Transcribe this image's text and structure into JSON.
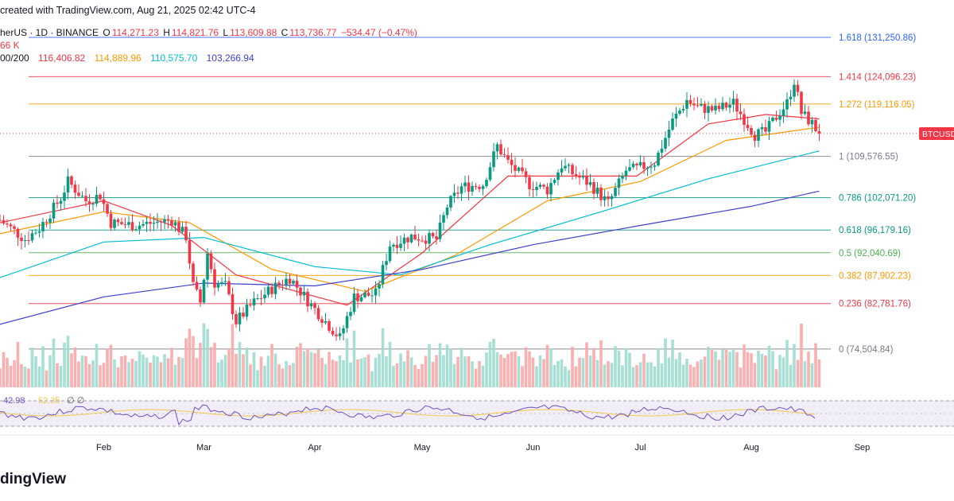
{
  "credit": "created with TradingView.com, Aug 21, 2025 02:42 UTC-4",
  "symbol_info": "herUS · 1D · BINANCE",
  "ohlc": {
    "o_label": "O",
    "o": "114,271.23",
    "h_label": "H",
    "h": "114,821.76",
    "l_label": "L",
    "l": "113,609.88",
    "c_label": "C",
    "c": "113,736.77",
    "change": "−534.47 (−0.47%)"
  },
  "volume_text": "66 K",
  "ma_label": "00/200",
  "ma_values": [
    "116,406.82",
    "114,889.96",
    "110,575.70",
    "103,266.94"
  ],
  "ma_colors": [
    "#f23645",
    "#ff9800",
    "#00bcd4",
    "#3f3fcf"
  ],
  "rsi_values": [
    "42.98",
    "52.35"
  ],
  "rsi_extra": "∅  ∅",
  "price_tag": "BTCUSDT",
  "logo_text": "dingView",
  "chart_data": {
    "type": "candlestick",
    "y_range": [
      70000,
      134000
    ],
    "x_axis": {
      "start_date": "2025-01-03",
      "end_date": "2025-09-10",
      "ticks": [
        {
          "date": "2025-02-01",
          "label": "Feb"
        },
        {
          "date": "2025-03-01",
          "label": "Mar"
        },
        {
          "date": "2025-04-01",
          "label": "Apr"
        },
        {
          "date": "2025-05-01",
          "label": "May"
        },
        {
          "date": "2025-06-01",
          "label": "Jun"
        },
        {
          "date": "2025-07-01",
          "label": "Jul"
        },
        {
          "date": "2025-08-01",
          "label": "Aug"
        },
        {
          "date": "2025-09-01",
          "label": "Sep"
        }
      ]
    },
    "fib_levels": [
      {
        "ratio": "1.618",
        "price": 131250.86,
        "label": "1.618 (131,250.86)",
        "color": "#2962ff"
      },
      {
        "ratio": "1.414",
        "price": 124096.23,
        "label": "1.414 (124,096.23)",
        "color": "#f23645"
      },
      {
        "ratio": "1.272",
        "price": 119116.05,
        "label": "1.272 (119,116.05)",
        "color": "#ff9800"
      },
      {
        "ratio": "1",
        "price": 109576.55,
        "label": "1 (109,576.55)",
        "color": "#787b86"
      },
      {
        "ratio": "0.786",
        "price": 102071.2,
        "label": "0.786 (102,071.20)",
        "color": "#089981"
      },
      {
        "ratio": "0.618",
        "price": 96179.16,
        "label": "0.618 (96,179.16)",
        "color": "#089981"
      },
      {
        "ratio": "0.5",
        "price": 92040.69,
        "label": "0.5 (92,040.69)",
        "color": "#4caf50"
      },
      {
        "ratio": "0.382",
        "price": 87902.23,
        "label": "0.382 (87,902.23)",
        "color": "#ff9800"
      },
      {
        "ratio": "0.236",
        "price": 82781.76,
        "label": "0.236 (82,781.76)",
        "color": "#f23645"
      },
      {
        "ratio": "0",
        "price": 74504.84,
        "label": "0 (74,504.84)",
        "color": "#787b86"
      }
    ],
    "close_anchors": [
      [
        "2025-01-03",
        98000
      ],
      [
        "2025-01-10",
        94500
      ],
      [
        "2025-01-14",
        96500
      ],
      [
        "2025-01-20",
        102000
      ],
      [
        "2025-01-22",
        105000
      ],
      [
        "2025-01-27",
        101500
      ],
      [
        "2025-01-31",
        102500
      ],
      [
        "2025-02-03",
        97500
      ],
      [
        "2025-02-10",
        97000
      ],
      [
        "2025-02-20",
        98000
      ],
      [
        "2025-02-24",
        95000
      ],
      [
        "2025-02-26",
        86000
      ],
      [
        "2025-02-28",
        83000
      ],
      [
        "2025-03-02",
        92000
      ],
      [
        "2025-03-04",
        86500
      ],
      [
        "2025-03-07",
        86000
      ],
      [
        "2025-03-10",
        79500
      ],
      [
        "2025-03-15",
        83000
      ],
      [
        "2025-03-20",
        85500
      ],
      [
        "2025-03-25",
        87500
      ],
      [
        "2025-03-31",
        82500
      ],
      [
        "2025-04-06",
        78000
      ],
      [
        "2025-04-08",
        76500
      ],
      [
        "2025-04-12",
        84000
      ],
      [
        "2025-04-18",
        84500
      ],
      [
        "2025-04-22",
        93500
      ],
      [
        "2025-04-28",
        95000
      ],
      [
        "2025-05-05",
        94500
      ],
      [
        "2025-05-08",
        100500
      ],
      [
        "2025-05-12",
        104000
      ],
      [
        "2025-05-18",
        104500
      ],
      [
        "2025-05-22",
        111500
      ],
      [
        "2025-05-25",
        108500
      ],
      [
        "2025-05-31",
        104500
      ],
      [
        "2025-06-05",
        103500
      ],
      [
        "2025-06-09",
        108000
      ],
      [
        "2025-06-12",
        106500
      ],
      [
        "2025-06-17",
        104500
      ],
      [
        "2025-06-22",
        101000
      ],
      [
        "2025-06-27",
        107000
      ],
      [
        "2025-06-30",
        107300
      ],
      [
        "2025-07-05",
        108500
      ],
      [
        "2025-07-10",
        116000
      ],
      [
        "2025-07-14",
        119800
      ],
      [
        "2025-07-17",
        118500
      ],
      [
        "2025-07-22",
        118000
      ],
      [
        "2025-07-27",
        119300
      ],
      [
        "2025-08-02",
        113500
      ],
      [
        "2025-08-05",
        114000
      ],
      [
        "2025-08-08",
        116800
      ],
      [
        "2025-08-11",
        119300
      ],
      [
        "2025-08-13",
        123400
      ],
      [
        "2025-08-15",
        117500
      ],
      [
        "2025-08-18",
        115500
      ],
      [
        "2025-08-20",
        113736.77
      ]
    ],
    "ma_lines": [
      {
        "name": "MA1",
        "color": "#f23645",
        "points": [
          [
            "2025-01-03",
            97500
          ],
          [
            "2025-02-01",
            101500
          ],
          [
            "2025-02-20",
            97000
          ],
          [
            "2025-03-10",
            88000
          ],
          [
            "2025-04-10",
            82500
          ],
          [
            "2025-05-01",
            92000
          ],
          [
            "2025-05-25",
            106000
          ],
          [
            "2025-06-30",
            106000
          ],
          [
            "2025-07-20",
            115500
          ],
          [
            "2025-08-05",
            117200
          ],
          [
            "2025-08-20",
            116406.82
          ]
        ]
      },
      {
        "name": "MA2",
        "color": "#ff9800",
        "points": [
          [
            "2025-01-03",
            95500
          ],
          [
            "2025-02-01",
            99500
          ],
          [
            "2025-02-25",
            97500
          ],
          [
            "2025-03-20",
            89000
          ],
          [
            "2025-04-15",
            85000
          ],
          [
            "2025-05-10",
            91500
          ],
          [
            "2025-06-05",
            101500
          ],
          [
            "2025-07-01",
            105000
          ],
          [
            "2025-07-25",
            112500
          ],
          [
            "2025-08-20",
            114889.96
          ]
        ]
      },
      {
        "name": "MA3",
        "color": "#00bcd4",
        "points": [
          [
            "2025-01-03",
            87500
          ],
          [
            "2025-02-01",
            94000
          ],
          [
            "2025-03-01",
            94800
          ],
          [
            "2025-04-01",
            89500
          ],
          [
            "2025-04-25",
            88000
          ],
          [
            "2025-05-20",
            93500
          ],
          [
            "2025-06-20",
            99500
          ],
          [
            "2025-07-20",
            105500
          ],
          [
            "2025-08-20",
            110575.7
          ]
        ]
      },
      {
        "name": "MA4",
        "color": "#3f3fcf",
        "points": [
          [
            "2025-01-03",
            79000
          ],
          [
            "2025-02-01",
            84000
          ],
          [
            "2025-03-01",
            86500
          ],
          [
            "2025-04-01",
            86000
          ],
          [
            "2025-05-01",
            89000
          ],
          [
            "2025-06-01",
            93500
          ],
          [
            "2025-07-01",
            97000
          ],
          [
            "2025-08-01",
            100500
          ],
          [
            "2025-08-20",
            103266.94
          ]
        ]
      }
    ]
  }
}
